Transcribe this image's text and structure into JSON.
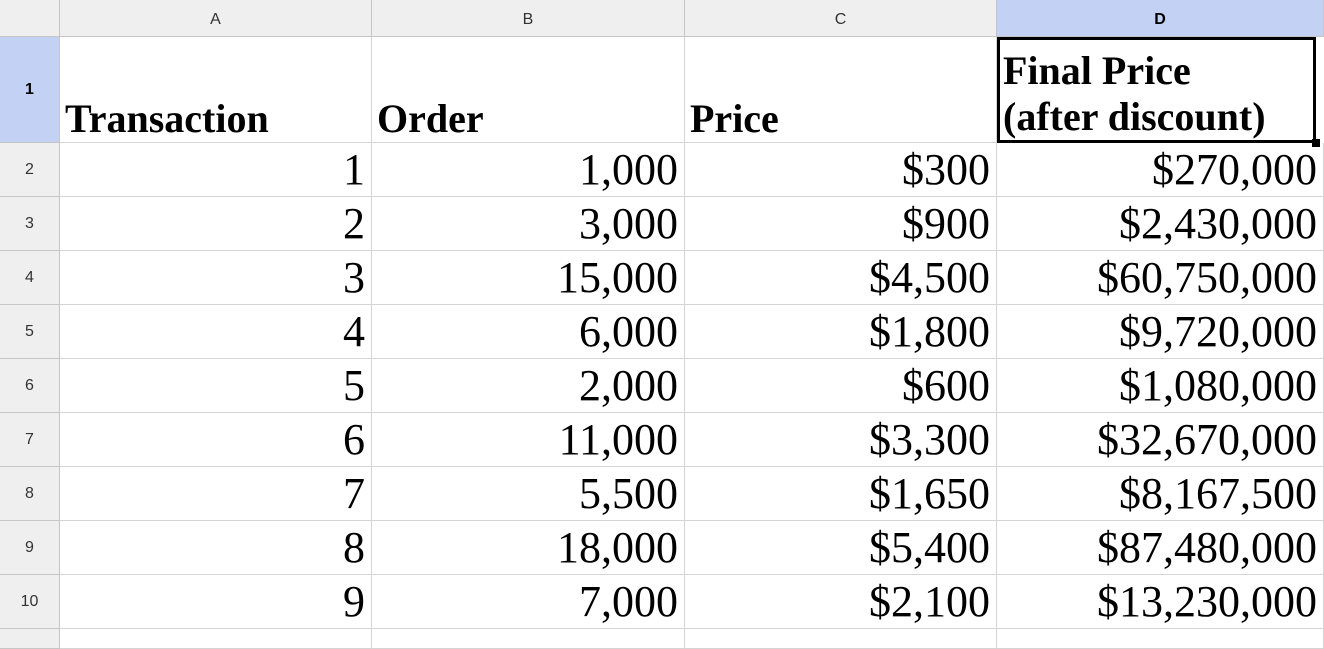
{
  "columns": [
    "A",
    "B",
    "C",
    "D"
  ],
  "rows": [
    "1",
    "2",
    "3",
    "4",
    "5",
    "6",
    "7",
    "8",
    "9",
    "10"
  ],
  "headers": {
    "a": "Transaction",
    "b": "Order",
    "c": "Price",
    "d_line1": "Final Price",
    "d_line2": "(after discount)"
  },
  "data": [
    [
      "1",
      "1,000",
      "$300",
      "$270,000"
    ],
    [
      "2",
      "3,000",
      "$900",
      "$2,430,000"
    ],
    [
      "3",
      "15,000",
      "$4,500",
      "$60,750,000"
    ],
    [
      "4",
      "6,000",
      "$1,800",
      "$9,720,000"
    ],
    [
      "5",
      "2,000",
      "$600",
      "$1,080,000"
    ],
    [
      "6",
      "11,000",
      "$3,300",
      "$32,670,000"
    ],
    [
      "7",
      "5,500",
      "$1,650",
      "$8,167,500"
    ],
    [
      "8",
      "18,000",
      "$5,400",
      "$87,480,000"
    ],
    [
      "9",
      "7,000",
      "$2,100",
      "$13,230,000"
    ]
  ],
  "selected_cell": "D1",
  "colors": {
    "header_bg": "#efefef",
    "selected_header_bg": "#c2d1f4",
    "grid": "#d4d4d4"
  }
}
